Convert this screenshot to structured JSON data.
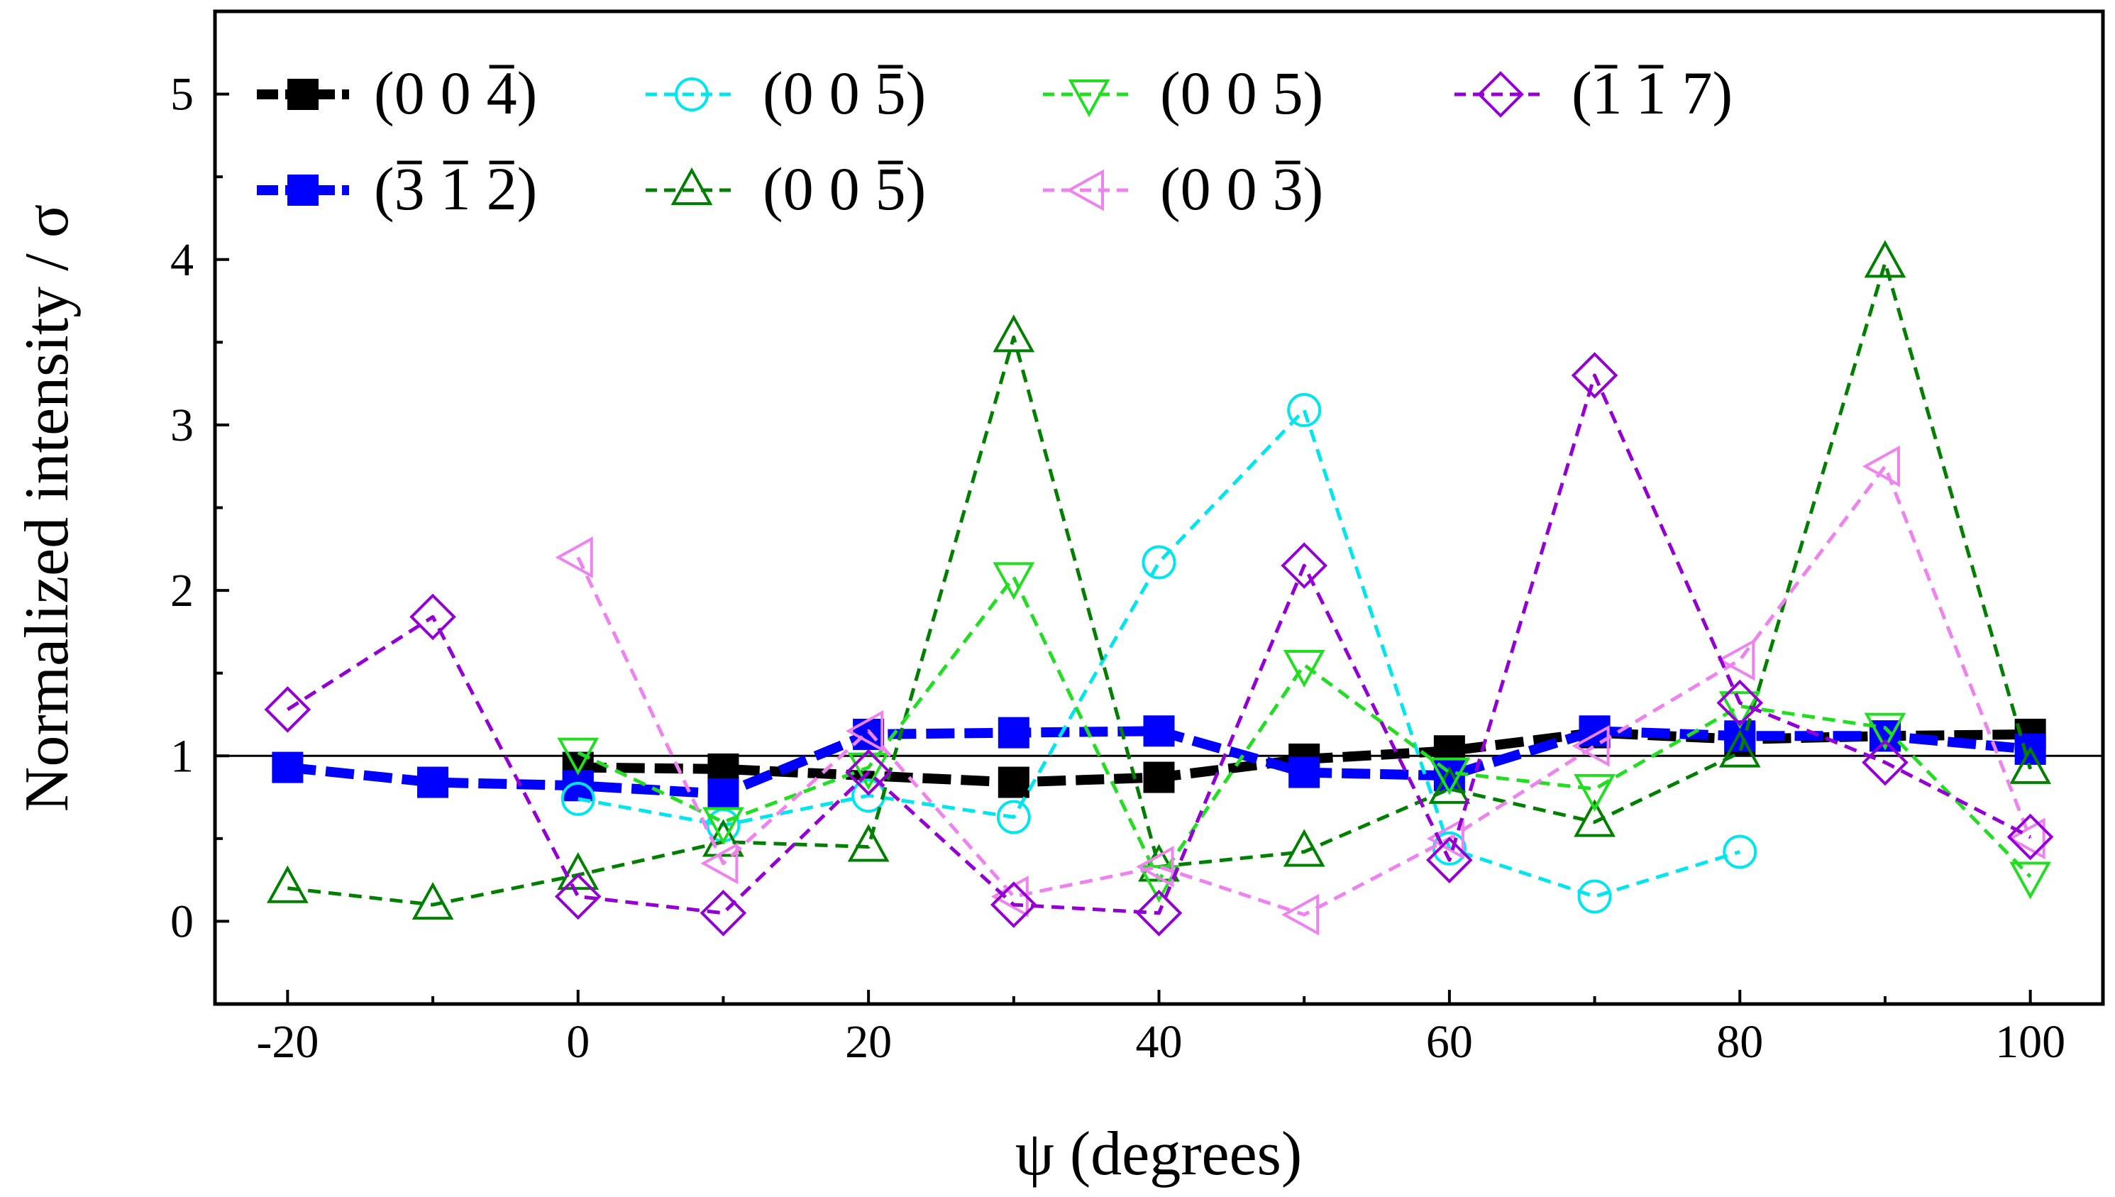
{
  "chart_data": {
    "type": "line",
    "title": "",
    "xlabel": "ψ (degrees)",
    "ylabel": "Normalized intensity / σ",
    "xlim": [
      -25,
      105
    ],
    "ylim": [
      -0.5,
      5.5
    ],
    "xticks": [
      -20,
      0,
      20,
      40,
      60,
      80,
      100
    ],
    "yticks": [
      0,
      1,
      2,
      3,
      4,
      5
    ],
    "x_tick_labels": [
      "-20",
      "0",
      "20",
      "40",
      "60",
      "80",
      "100"
    ],
    "y_tick_labels": [
      "0",
      "1",
      "2",
      "3",
      "4",
      "5"
    ],
    "reference_line": 1,
    "legend_position": "top-left",
    "series": [
      {
        "name": "(0 0 4̄)",
        "label": {
          "open": "(",
          "digits": [
            {
              "d": "0",
              "bar": false
            },
            {
              "d": "0",
              "bar": false
            },
            {
              "d": "4",
              "bar": true
            }
          ],
          "close": ")"
        },
        "color": "#000000",
        "marker": "square-filled",
        "dash": "thick",
        "x": [
          0,
          10,
          30,
          40,
          50,
          60,
          70,
          80,
          90,
          100
        ],
        "y": [
          0.93,
          0.92,
          0.84,
          0.87,
          0.98,
          1.03,
          1.14,
          1.1,
          1.12,
          1.13
        ]
      },
      {
        "name": "(3̄ 1̄ 2̄)",
        "label": {
          "open": "(",
          "digits": [
            {
              "d": "3",
              "bar": true
            },
            {
              "d": "1",
              "bar": true
            },
            {
              "d": "2",
              "bar": true
            }
          ],
          "close": ")"
        },
        "color": "#0000ff",
        "marker": "square-filled",
        "dash": "thick",
        "x": [
          -20,
          -10,
          0,
          10,
          20,
          30,
          40,
          50,
          60,
          70,
          80,
          90,
          100
        ],
        "y": [
          0.93,
          0.84,
          0.82,
          0.77,
          1.13,
          1.14,
          1.15,
          0.9,
          0.88,
          1.15,
          1.12,
          1.12,
          1.04
        ]
      },
      {
        "name": "(0 0 5̄)",
        "label": {
          "open": "(",
          "digits": [
            {
              "d": "0",
              "bar": false
            },
            {
              "d": "0",
              "bar": false
            },
            {
              "d": "5",
              "bar": true
            }
          ],
          "close": ")"
        },
        "color": "#00e5ee",
        "marker": "circle-open",
        "dash": "dashed",
        "x": [
          0,
          10,
          20,
          30,
          40,
          50,
          60,
          70,
          80
        ],
        "y": [
          0.74,
          0.58,
          0.76,
          0.63,
          2.17,
          3.09,
          0.44,
          0.15,
          0.42
        ]
      },
      {
        "name": "(0 0 5̄)",
        "label": {
          "open": "(",
          "digits": [
            {
              "d": "0",
              "bar": false
            },
            {
              "d": "0",
              "bar": false
            },
            {
              "d": "5",
              "bar": true
            }
          ],
          "close": ")"
        },
        "color": "#007f00",
        "marker": "triangle-up-open",
        "dash": "dashed",
        "x": [
          -20,
          -10,
          0,
          10,
          20,
          30,
          40,
          50,
          60,
          70,
          80,
          90,
          100
        ],
        "y": [
          0.2,
          0.1,
          0.28,
          0.48,
          0.45,
          3.53,
          0.33,
          0.42,
          0.8,
          0.6,
          1.02,
          3.98,
          0.92
        ]
      },
      {
        "name": "(0 0 5)",
        "label": {
          "open": "(",
          "digits": [
            {
              "d": "0",
              "bar": false
            },
            {
              "d": "0",
              "bar": false
            },
            {
              "d": "5",
              "bar": false
            }
          ],
          "close": ")"
        },
        "color": "#22dd22",
        "marker": "triangle-down-open",
        "dash": "dashed",
        "x": [
          0,
          10,
          20,
          30,
          40,
          50,
          60,
          70,
          80,
          90,
          100
        ],
        "y": [
          1.02,
          0.6,
          0.93,
          2.08,
          0.25,
          1.55,
          0.9,
          0.8,
          1.3,
          1.17,
          0.27
        ]
      },
      {
        "name": "(0 0 3̄)",
        "label": {
          "open": "(",
          "digits": [
            {
              "d": "0",
              "bar": false
            },
            {
              "d": "0",
              "bar": false
            },
            {
              "d": "3",
              "bar": true
            }
          ],
          "close": ")"
        },
        "color": "#ee82ee",
        "marker": "triangle-left-open",
        "dash": "dashed",
        "x": [
          0,
          10,
          20,
          30,
          40,
          50,
          60,
          70,
          80,
          90,
          100
        ],
        "y": [
          2.2,
          0.35,
          1.15,
          0.15,
          0.33,
          0.04,
          0.5,
          1.06,
          1.58,
          2.75,
          0.5
        ]
      },
      {
        "name": "(1̄ 1̄ 7)",
        "label": {
          "open": "(",
          "digits": [
            {
              "d": "1",
              "bar": true
            },
            {
              "d": "1",
              "bar": true
            },
            {
              "d": "7",
              "bar": false
            }
          ],
          "close": ")"
        },
        "color": "#9400d3",
        "marker": "diamond-open",
        "dash": "dashed",
        "x": [
          -20,
          -10,
          0,
          10,
          20,
          30,
          40,
          50,
          60,
          70,
          80,
          90,
          100
        ],
        "y": [
          1.28,
          1.84,
          0.15,
          0.05,
          0.9,
          0.1,
          0.05,
          2.15,
          0.37,
          3.3,
          1.32,
          0.96,
          0.51
        ]
      }
    ]
  }
}
